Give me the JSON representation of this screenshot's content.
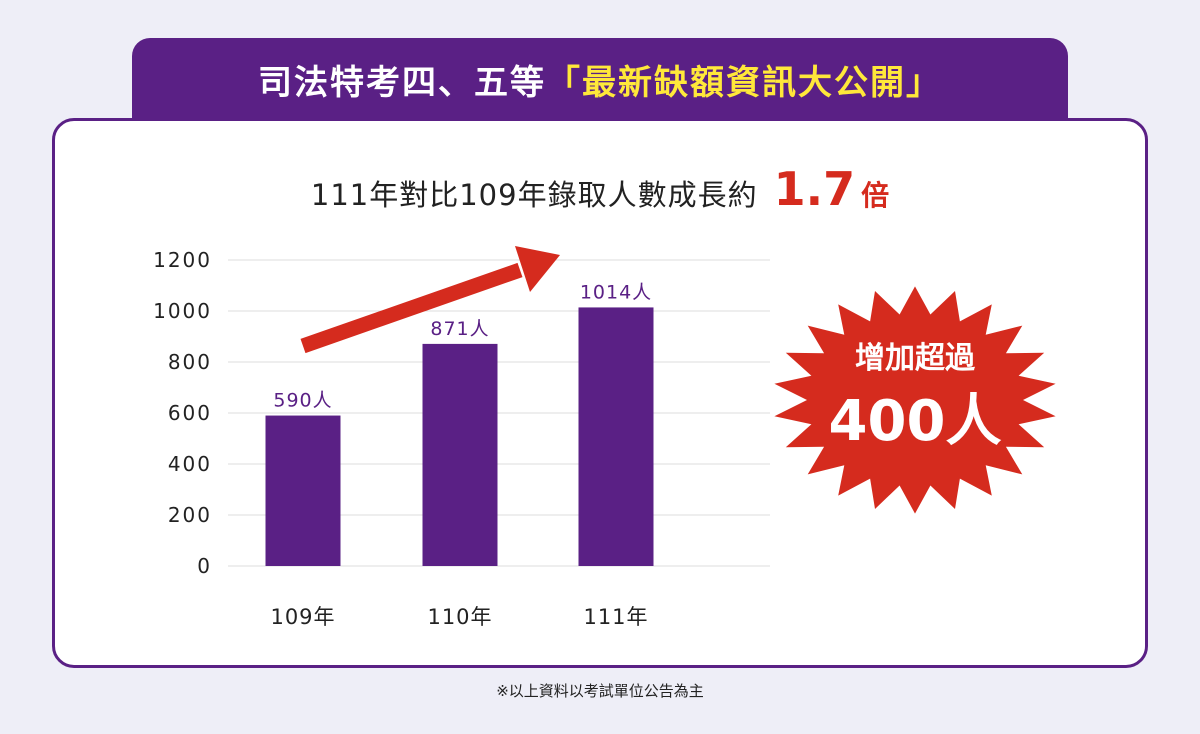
{
  "banner": {
    "title_main": "司法特考四、五等",
    "title_highlight": "「最新缺額資訊大公開」"
  },
  "headline": {
    "text": "111年對比109年錄取人數成長約",
    "ratio": "1.7",
    "unit": "倍"
  },
  "burst": {
    "line1": "增加超過",
    "line2": "400人"
  },
  "footnote": "※以上資料以考試單位公告為主",
  "colors": {
    "purple": "#5a2085",
    "red": "#d52b1e",
    "yellow": "#ffe83a"
  },
  "chart_data": {
    "type": "bar",
    "categories": [
      "109年",
      "110年",
      "111年"
    ],
    "values": [
      590,
      871,
      1014
    ],
    "data_labels": [
      "590人",
      "871人",
      "1014人"
    ],
    "yticks": [
      0,
      200,
      400,
      600,
      800,
      1000,
      1200
    ],
    "ylim": [
      0,
      1200
    ],
    "grid": true,
    "bar_color": "#5a2085"
  }
}
